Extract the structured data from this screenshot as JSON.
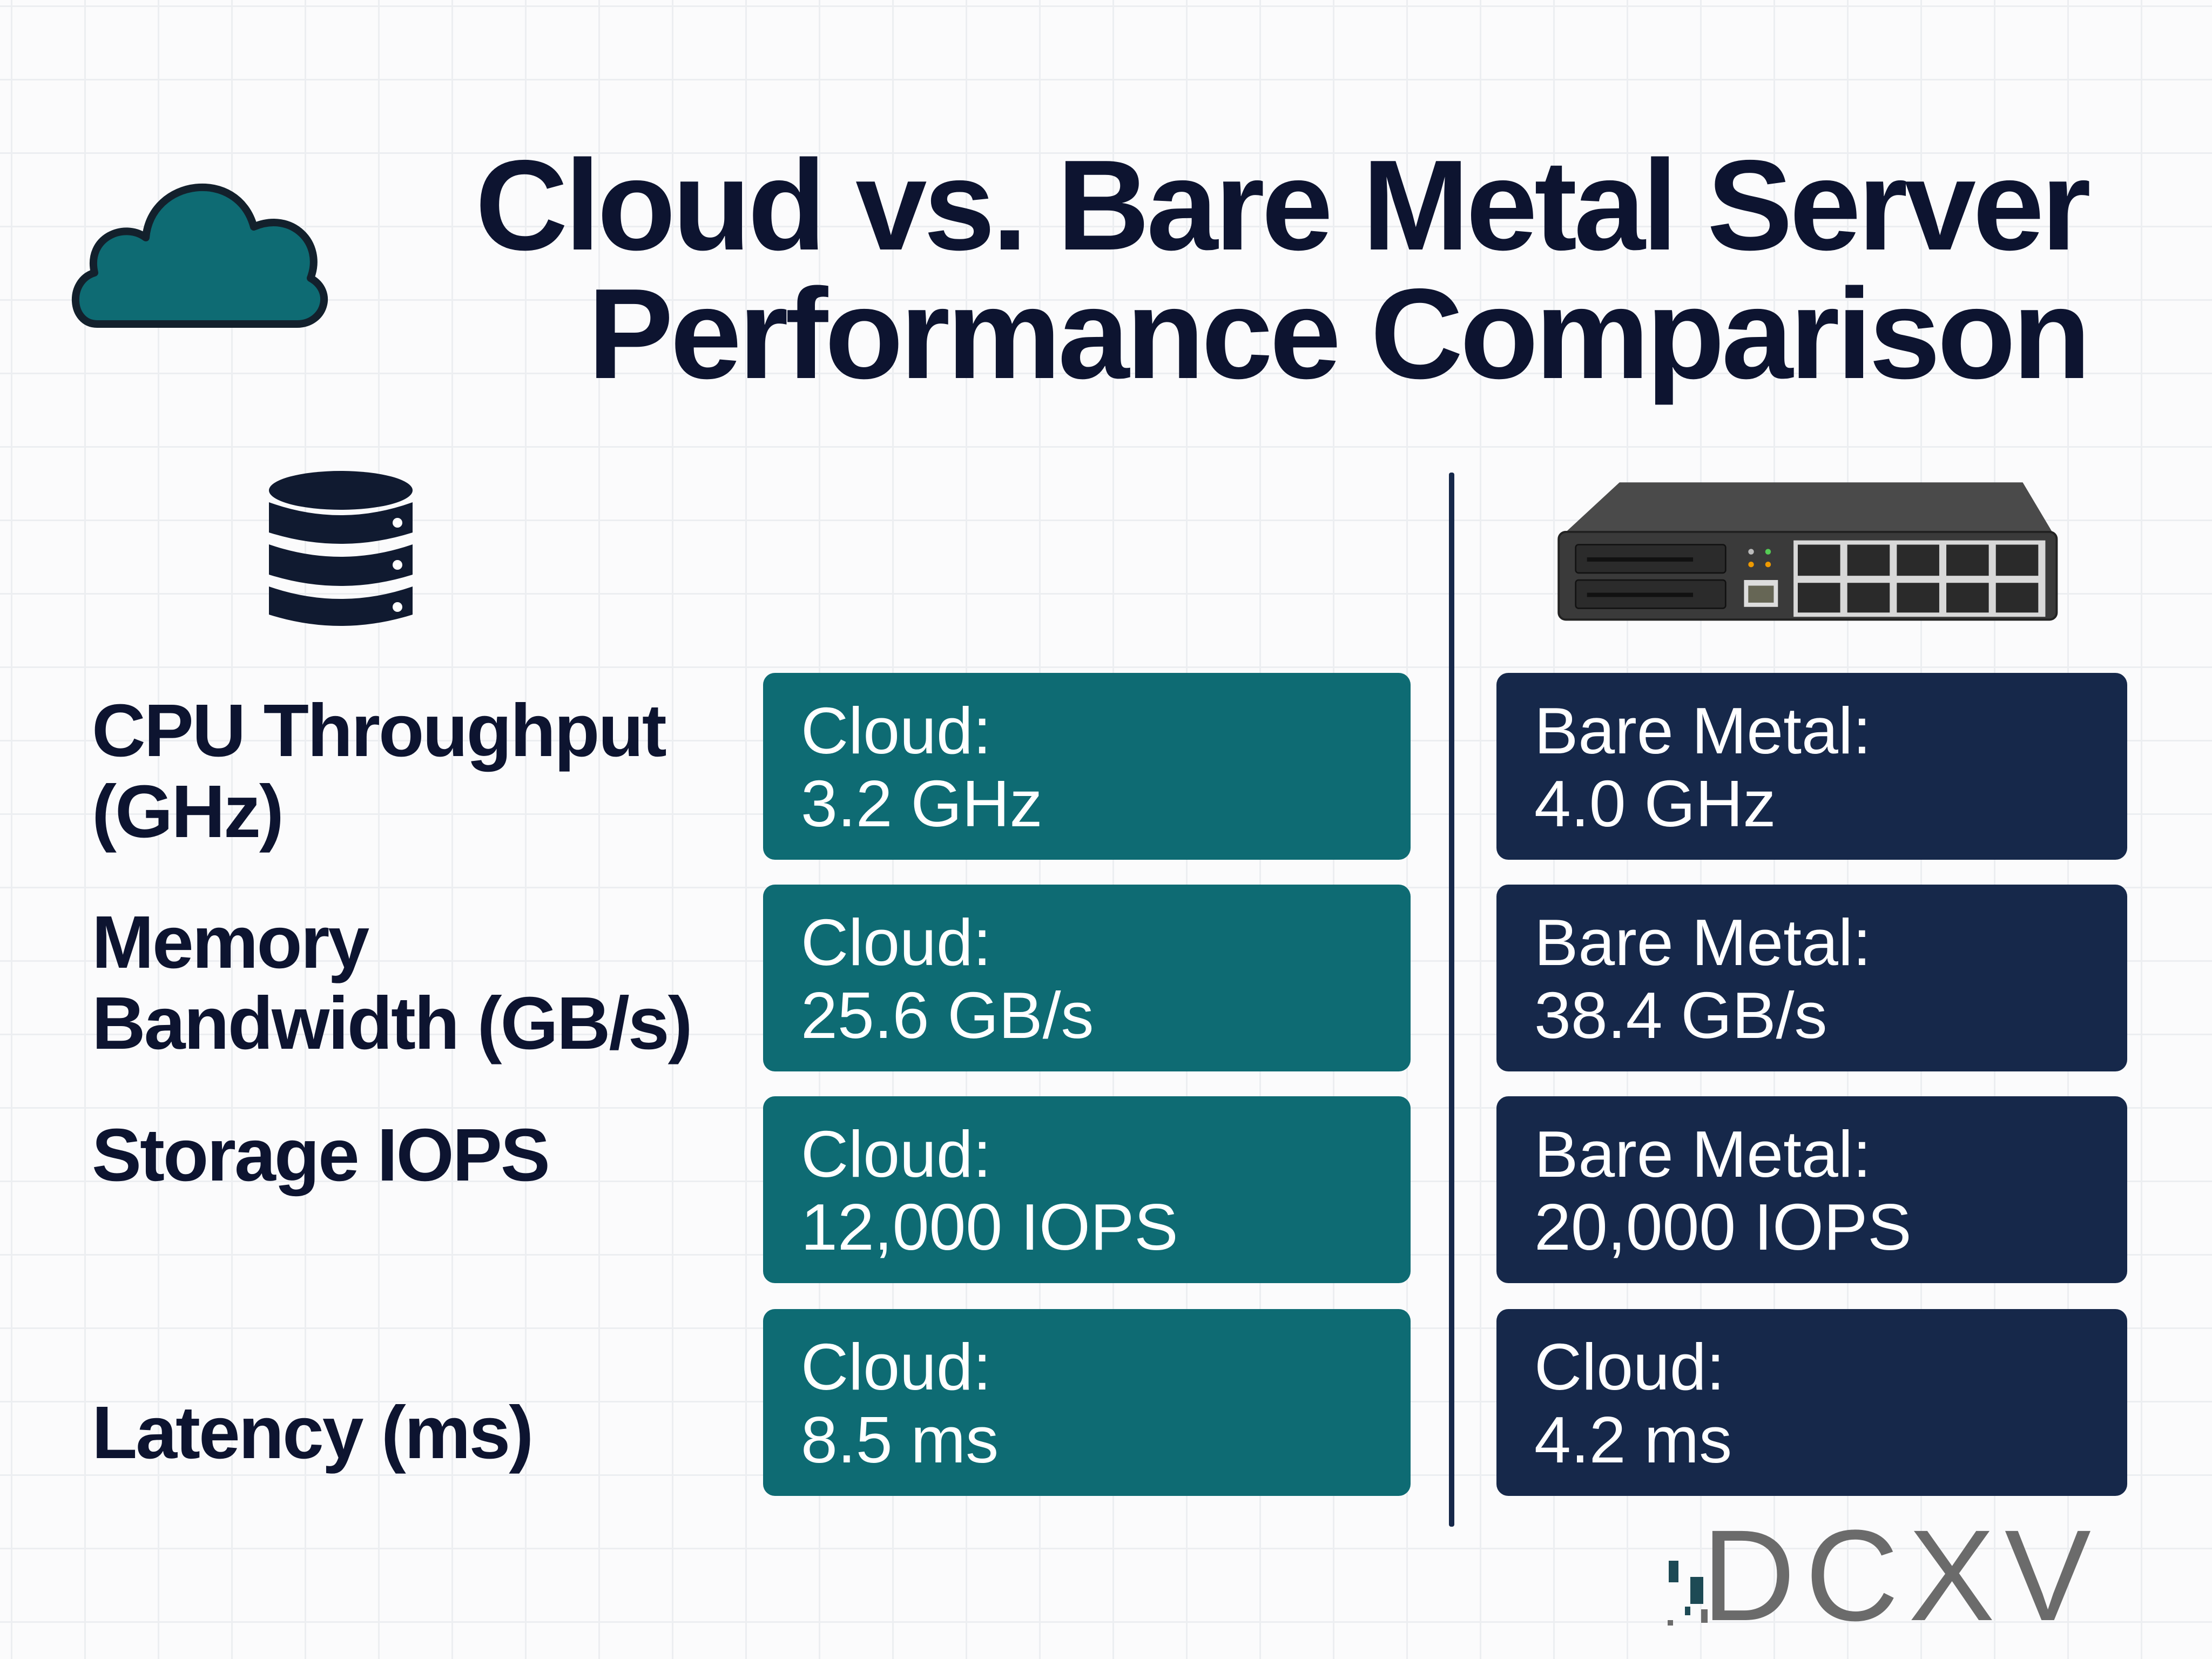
{
  "title": {
    "line1": "Cloud vs. Bare Metal Server",
    "line2": "Performance Comparison"
  },
  "icons": {
    "title_icon": "cloud-icon",
    "cloud_column_icon": "database-icon",
    "bare_metal_column_icon": "rack-server-icon"
  },
  "colors": {
    "cloud": "#0e6b73",
    "bare_metal": "#16284a",
    "title": "#0d1430"
  },
  "rows": [
    {
      "metric": "CPU Throughput (GHz)",
      "cloud_label": "Cloud:",
      "cloud_value": "3.2 GHz",
      "bare_label": "Bare Metal:",
      "bare_value": "4.0 GHz"
    },
    {
      "metric": "Memory Bandwidth (GB/s)",
      "cloud_label": "Cloud:",
      "cloud_value": "25.6 GB/s",
      "bare_label": "Bare Metal:",
      "bare_value": "38.4 GB/s"
    },
    {
      "metric": "Storage IOPS",
      "cloud_label": "Cloud:",
      "cloud_value": "12,000 IOPS",
      "bare_label": "Bare Metal:",
      "bare_value": "20,000 IOPS"
    },
    {
      "metric": "Latency (ms)",
      "cloud_label": "Cloud:",
      "cloud_value": "8.5 ms",
      "bare_label": "Cloud:",
      "bare_value": "4.2 ms"
    }
  ],
  "watermark": "DCXV"
}
